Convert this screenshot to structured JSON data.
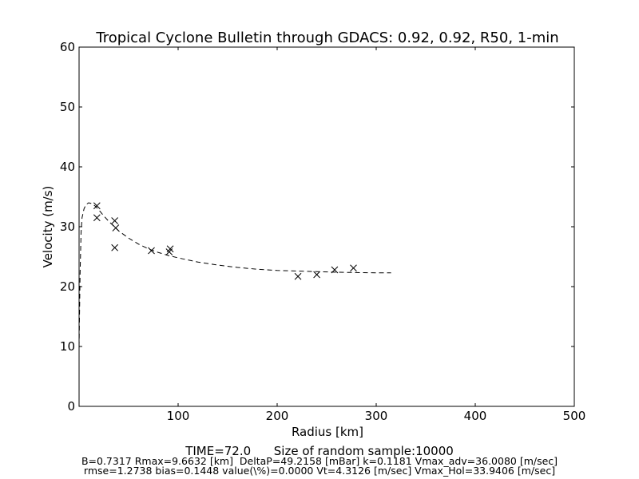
{
  "chart_data": {
    "type": "scatter",
    "title": "Tropical Cyclone Bulletin through GDACS: 0.92, 0.92, R50, 1-min",
    "xlabel": "Radius [km]",
    "ylabel": "Velocity (m/s)",
    "xlim": [
      0,
      500
    ],
    "ylim": [
      0,
      60
    ],
    "x_ticks": [
      100,
      200,
      300,
      400,
      500
    ],
    "y_ticks": [
      0,
      10,
      20,
      30,
      40,
      50,
      60
    ],
    "grid": false,
    "series": [
      {
        "marker": "x",
        "points": [
          [
            18,
            33.5
          ],
          [
            18,
            31.5
          ],
          [
            36,
            31.0
          ],
          [
            37,
            29.8
          ],
          [
            36,
            26.5
          ],
          [
            73,
            26.0
          ],
          [
            91,
            25.8
          ],
          [
            92,
            26.3
          ],
          [
            221,
            21.7
          ],
          [
            240,
            22.0
          ],
          [
            258,
            22.8
          ],
          [
            277,
            23.1
          ]
        ]
      },
      {
        "style": "dashed",
        "points": [
          [
            0,
            10
          ],
          [
            1,
            22
          ],
          [
            2,
            29
          ],
          [
            3,
            31.5
          ],
          [
            5,
            33
          ],
          [
            7,
            33.7
          ],
          [
            9.66,
            34.0
          ],
          [
            12,
            33.9
          ],
          [
            16,
            33.5
          ],
          [
            20,
            32.8
          ],
          [
            25,
            31.8
          ],
          [
            30,
            30.9
          ],
          [
            40,
            29.3
          ],
          [
            50,
            28.1
          ],
          [
            60,
            27.1
          ],
          [
            70,
            26.3
          ],
          [
            80,
            25.7
          ],
          [
            90,
            25.2
          ],
          [
            100,
            24.8
          ],
          [
            120,
            24.1
          ],
          [
            140,
            23.6
          ],
          [
            160,
            23.2
          ],
          [
            180,
            22.9
          ],
          [
            200,
            22.7
          ],
          [
            220,
            22.6
          ],
          [
            240,
            22.5
          ],
          [
            260,
            22.4
          ],
          [
            280,
            22.35
          ],
          [
            300,
            22.3
          ],
          [
            315,
            22.3
          ]
        ]
      }
    ]
  },
  "footer": {
    "line1": "TIME=72.0      Size of random sample:10000",
    "line2": "B=0.7317 Rmax=9.6632 [km]  DeltaP=49.2158 [mBar] k=0.1181 Vmax_adv=36.0080 [m/sec]",
    "line3": "rmse=1.2738 bias=0.1448 value(\\%)=0.0000 Vt=4.3126 [m/sec] Vmax_Hol=33.9406 [m/sec]"
  }
}
